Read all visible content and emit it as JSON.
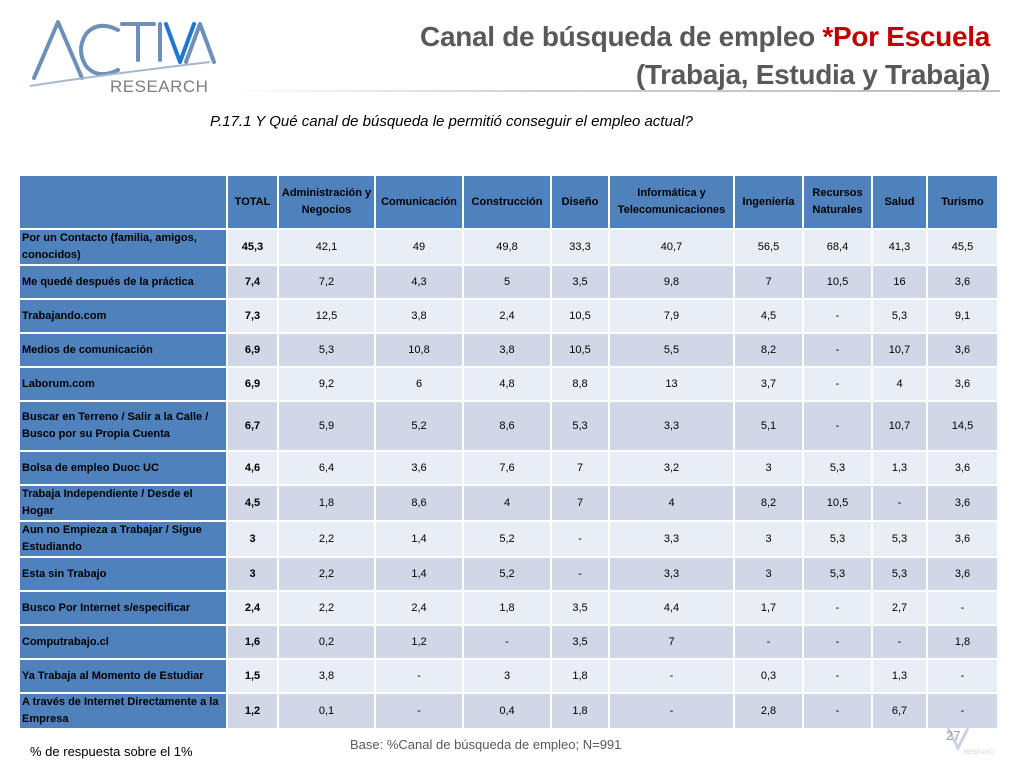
{
  "logo": {
    "brand": "ACTIVA",
    "sub": "RESEARCH"
  },
  "title": {
    "line1_prefix": "Canal de búsqueda de empleo ",
    "line1_highlight": "*Por Escuela",
    "line2": "(Trabaja, Estudia y Trabaja)"
  },
  "question": "P.17.1  Y Qué canal de búsqueda le permitió conseguir el empleo actual?",
  "table": {
    "headers": [
      "",
      "TOTAL",
      "Administración y Negocios",
      "Comunicación",
      "Construcción",
      "Diseño",
      "Informática y Telecomunicaciones",
      "Ingeniería",
      "Recursos Naturales",
      "Salud",
      "Turismo"
    ],
    "rows": [
      {
        "label": "Por un Contacto (familia, amigos, conocidos)",
        "values": [
          "45,3",
          "42,1",
          "49",
          "49,8",
          "33,3",
          "40,7",
          "56,5",
          "68,4",
          "41,3",
          "45,5"
        ]
      },
      {
        "label": "Me quedé después de la práctica",
        "values": [
          "7,4",
          "7,2",
          "4,3",
          "5",
          "3,5",
          "9,8",
          "7",
          "10,5",
          "16",
          "3,6"
        ]
      },
      {
        "label": "Trabajando.com",
        "values": [
          "7,3",
          "12,5",
          "3,8",
          "2,4",
          "10,5",
          "7,9",
          "4,5",
          "-",
          "5,3",
          "9,1"
        ]
      },
      {
        "label": "Medios de comunicación",
        "values": [
          "6,9",
          "5,3",
          "10,8",
          "3,8",
          "10,5",
          "5,5",
          "8,2",
          "-",
          "10,7",
          "3,6"
        ]
      },
      {
        "label": "Laborum.com",
        "values": [
          "6,9",
          "9,2",
          "6",
          "4,8",
          "8,8",
          "13",
          "3,7",
          "-",
          "4",
          "3,6"
        ]
      },
      {
        "label": "Buscar en Terreno / Salir a la Calle / Busco por su Propia Cuenta",
        "values": [
          "6,7",
          "5,9",
          "5,2",
          "8,6",
          "5,3",
          "3,3",
          "5,1",
          "-",
          "10,7",
          "14,5"
        ]
      },
      {
        "label": "Bolsa de empleo  Duoc UC",
        "values": [
          "4,6",
          "6,4",
          "3,6",
          "7,6",
          "7",
          "3,2",
          "3",
          "5,3",
          "1,3",
          "3,6"
        ]
      },
      {
        "label": "Trabaja Independiente / Desde el Hogar",
        "values": [
          "4,5",
          "1,8",
          "8,6",
          "4",
          "7",
          "4",
          "8,2",
          "10,5",
          "-",
          "3,6"
        ]
      },
      {
        "label": "Aun no Empieza a Trabajar / Sigue Estudiando",
        "values": [
          "3",
          "2,2",
          "1,4",
          "5,2",
          "-",
          "3,3",
          "3",
          "5,3",
          "5,3",
          "3,6"
        ]
      },
      {
        "label": "Esta sin Trabajo",
        "values": [
          "3",
          "2,2",
          "1,4",
          "5,2",
          "-",
          "3,3",
          "3",
          "5,3",
          "5,3",
          "3,6"
        ]
      },
      {
        "label": "Busco Por Internet s/especificar",
        "values": [
          "2,4",
          "2,2",
          "2,4",
          "1,8",
          "3,5",
          "4,4",
          "1,7",
          "-",
          "2,7",
          "-"
        ]
      },
      {
        "label": "Computrabajo.cl",
        "values": [
          "1,6",
          "0,2",
          "1,2",
          "-",
          "3,5",
          "7",
          "-",
          "-",
          "-",
          "1,8"
        ]
      },
      {
        "label": "Ya Trabaja al Momento de Estudiar",
        "values": [
          "1,5",
          "3,8",
          "-",
          "3",
          "1,8",
          "-",
          "0,3",
          "-",
          "1,3",
          "-"
        ]
      },
      {
        "label": "A través de Internet Directamente a la Empresa",
        "values": [
          "1,2",
          "0,1",
          "-",
          "0,4",
          "1,8",
          "-",
          "2,8",
          "-",
          "6,7",
          "-"
        ]
      }
    ]
  },
  "footnote": "% de respuesta sobre el 1%",
  "base": "Base: %Canal de búsqueda de empleo; N=991",
  "page_number": "27",
  "colors": {
    "header_blue": "#4f81bd",
    "row_light": "#d0d8e8",
    "row_lighter": "#e9edf4",
    "title_gray": "#595959",
    "title_red": "#c00000"
  }
}
